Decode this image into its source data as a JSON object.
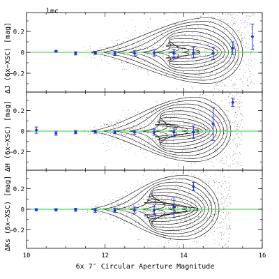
{
  "chart_data": {
    "type": "scatter",
    "corner_label": "lmc",
    "xlabel": "6x 7″ Circular Aperture Magnitude",
    "xlim": [
      10,
      16
    ],
    "x_ticks": [
      10,
      12,
      14,
      16
    ],
    "panels": [
      {
        "id": "J",
        "ylabel": "ΔJ (6x−XSC) [mag]",
        "ylim": [
          -0.38,
          0.38
        ],
        "y_ticks": [
          -0.2,
          0,
          0.2
        ],
        "y_tick_labels": [
          "−0.2",
          "0",
          "0.2"
        ],
        "points": [
          {
            "x": 10.75,
            "y": 0.01,
            "err": 0.005
          },
          {
            "x": 11.25,
            "y": -0.01,
            "err": 0.015
          },
          {
            "x": 11.75,
            "y": -0.005,
            "err": 0.015
          },
          {
            "x": 12.25,
            "y": -0.01,
            "err": 0.02
          },
          {
            "x": 12.75,
            "y": -0.01,
            "err": 0.025
          },
          {
            "x": 13.25,
            "y": -0.005,
            "err": 0.03
          },
          {
            "x": 13.75,
            "y": -0.01,
            "err": 0.04
          },
          {
            "x": 14.25,
            "y": -0.005,
            "err": 0.05
          },
          {
            "x": 14.75,
            "y": -0.01,
            "err": 0.06
          },
          {
            "x": 15.25,
            "y": 0.04,
            "err": 0.06
          },
          {
            "x": 15.75,
            "y": 0.15,
            "err": 0.12
          }
        ]
      },
      {
        "id": "H",
        "ylabel": "ΔH (6x−XSC) [mag]",
        "ylim": [
          -0.38,
          0.38
        ],
        "y_ticks": [
          -0.2,
          0,
          0.2
        ],
        "y_tick_labels": [
          "−0.2",
          "0",
          "0.2"
        ],
        "points": [
          {
            "x": 10.25,
            "y": 0.01,
            "err": 0.03
          },
          {
            "x": 10.75,
            "y": -0.02,
            "err": 0.02
          },
          {
            "x": 11.25,
            "y": -0.01,
            "err": 0.015
          },
          {
            "x": 11.75,
            "y": -0.005,
            "err": 0.015
          },
          {
            "x": 12.25,
            "y": -0.01,
            "err": 0.015
          },
          {
            "x": 12.75,
            "y": -0.01,
            "err": 0.02
          },
          {
            "x": 13.25,
            "y": -0.01,
            "err": 0.03
          },
          {
            "x": 13.75,
            "y": -0.01,
            "err": 0.04
          },
          {
            "x": 14.25,
            "y": -0.01,
            "err": 0.06
          },
          {
            "x": 14.75,
            "y": 0.07,
            "err": 0.16
          },
          {
            "x": 15.25,
            "y": 0.28,
            "err": 0.04
          }
        ]
      },
      {
        "id": "Ks",
        "ylabel": "ΔKs (6x−XSC) [mag]",
        "ylim": [
          -0.38,
          0.38
        ],
        "y_ticks": [
          -0.2,
          0,
          0.2
        ],
        "y_tick_labels": [
          "−0.2",
          "0",
          "0.2"
        ],
        "points": [
          {
            "x": 10.25,
            "y": -0.005,
            "err": 0.01
          },
          {
            "x": 10.75,
            "y": -0.005,
            "err": 0.01
          },
          {
            "x": 11.25,
            "y": -0.005,
            "err": 0.015
          },
          {
            "x": 11.75,
            "y": -0.01,
            "err": 0.02
          },
          {
            "x": 12.25,
            "y": -0.01,
            "err": 0.02
          },
          {
            "x": 12.75,
            "y": -0.01,
            "err": 0.03
          },
          {
            "x": 13.25,
            "y": -0.01,
            "err": 0.04
          },
          {
            "x": 13.75,
            "y": 0.02,
            "err": 0.1
          },
          {
            "x": 14.25,
            "y": 0.22,
            "err": 0.04
          }
        ]
      }
    ]
  }
}
